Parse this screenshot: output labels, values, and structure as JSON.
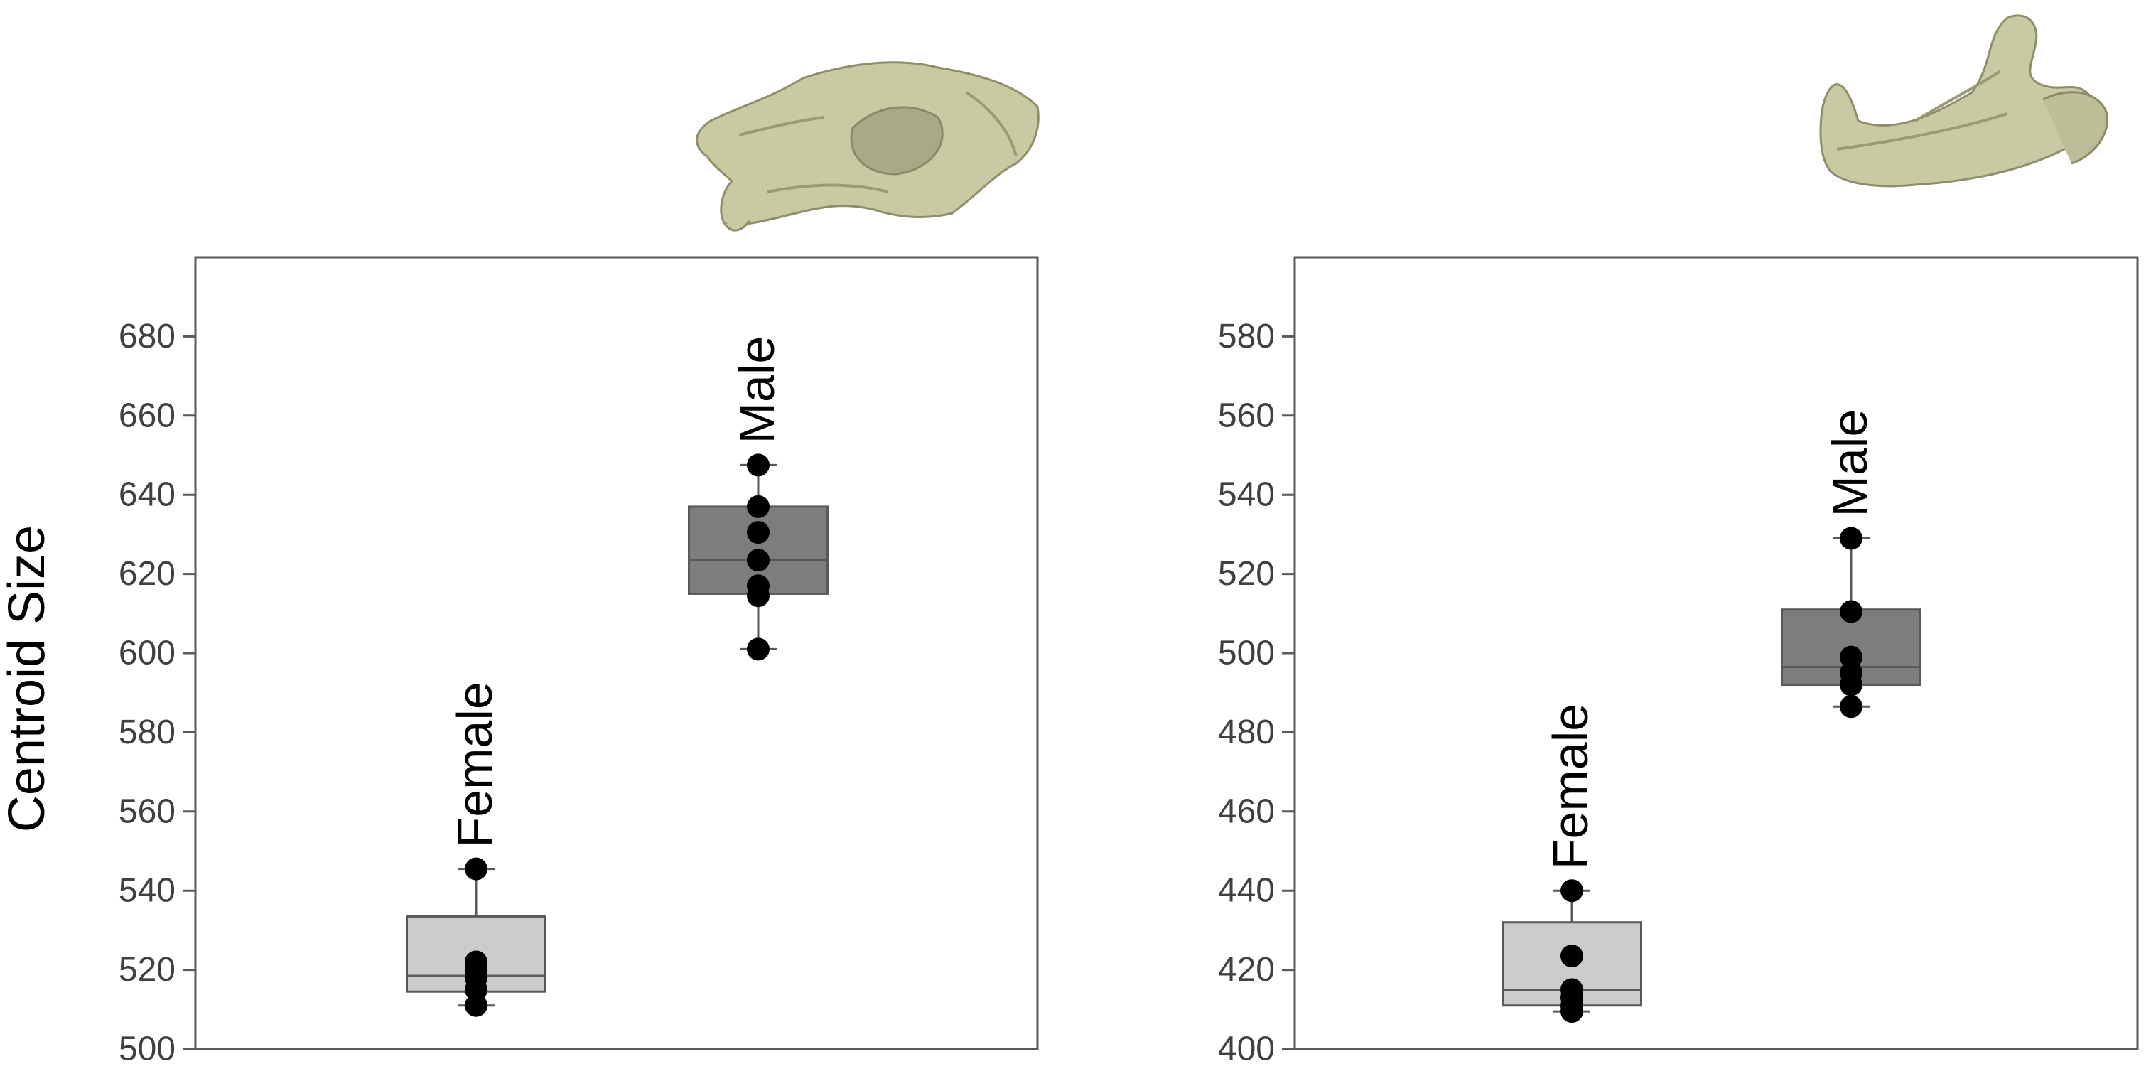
{
  "figure": {
    "ylabel": "Centroid Size",
    "colors": {
      "female_box": "#cbcbcb",
      "male_box": "#7d7d7d",
      "outline": "#595959",
      "point": "#000000",
      "axis_text": "#404040",
      "bone": "#c9c9a4"
    }
  },
  "chart_data": [
    {
      "type": "box",
      "icon": "skull-icon",
      "title": "",
      "xlabel": "",
      "ylabel": "Centroid Size",
      "ylim": [
        500,
        700
      ],
      "yticks": [
        500,
        520,
        540,
        560,
        580,
        600,
        620,
        640,
        660,
        680
      ],
      "grid": false,
      "legend": "none",
      "groups": [
        {
          "name": "Female",
          "whisker_low": 511,
          "q1": 514.5,
          "median": 518.5,
          "q3": 533.5,
          "whisker_high": 545.5,
          "points": [
            511,
            515,
            518,
            520,
            522,
            545.5
          ]
        },
        {
          "name": "Male",
          "whisker_low": 601,
          "q1": 615,
          "median": 623.5,
          "q3": 637,
          "whisker_high": 647.5,
          "points": [
            601,
            614.5,
            617,
            623.5,
            630.5,
            637,
            647.5
          ]
        }
      ]
    },
    {
      "type": "box",
      "icon": "mandible-icon",
      "title": "",
      "xlabel": "",
      "ylabel": "",
      "ylim": [
        400,
        600
      ],
      "yticks": [
        400,
        420,
        440,
        460,
        480,
        500,
        520,
        540,
        560,
        580
      ],
      "grid": false,
      "legend": "none",
      "groups": [
        {
          "name": "Female",
          "whisker_low": 409.5,
          "q1": 411,
          "median": 415,
          "q3": 432,
          "whisker_high": 440,
          "points": [
            409.5,
            411,
            413,
            415,
            423.5,
            440
          ]
        },
        {
          "name": "Male",
          "whisker_low": 486.5,
          "q1": 492,
          "median": 496.5,
          "q3": 511,
          "whisker_high": 529,
          "points": [
            486.5,
            492,
            495,
            499,
            510.5,
            529
          ]
        }
      ]
    }
  ]
}
